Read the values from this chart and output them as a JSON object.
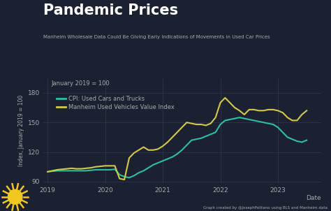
{
  "title": "Pandemic Prices",
  "subtitle": "Manheim Wholesale Data Could Be Giving Early Indications of Movements in Used Car Prices",
  "annotation": "January 2019 = 100",
  "ylabel": "Index, January 2019 = 100",
  "xlabel": "Date",
  "credit": "Graph created by @JosephPolitano using BLS and Manheim data",
  "legend_labels": [
    "CPI: Used Cars and Trucks",
    "Manheim Used Vehicles Value Index"
  ],
  "line_colors": [
    "#2ebfa0",
    "#d4c84a"
  ],
  "bg_color": "#1c2132",
  "plot_bg_color": "#1c2132",
  "text_color": "#aaaaaa",
  "title_color": "#ffffff",
  "grid_color": "#2e3450",
  "ylim": [
    88,
    195
  ],
  "yticks": [
    90,
    120,
    150,
    180
  ],
  "xlim": [
    2018.92,
    2023.75
  ],
  "xticks": [
    2019,
    2020,
    2021,
    2022,
    2023
  ],
  "cpi_dates": [
    2019.0,
    2019.083,
    2019.167,
    2019.25,
    2019.333,
    2019.417,
    2019.5,
    2019.583,
    2019.667,
    2019.75,
    2019.833,
    2019.917,
    2020.0,
    2020.083,
    2020.167,
    2020.25,
    2020.333,
    2020.417,
    2020.5,
    2020.583,
    2020.667,
    2020.75,
    2020.833,
    2020.917,
    2021.0,
    2021.083,
    2021.167,
    2021.25,
    2021.333,
    2021.417,
    2021.5,
    2021.583,
    2021.667,
    2021.75,
    2021.833,
    2021.917,
    2022.0,
    2022.083,
    2022.167,
    2022.25,
    2022.333,
    2022.417,
    2022.5,
    2022.583,
    2022.667,
    2022.75,
    2022.833,
    2022.917,
    2023.0,
    2023.083,
    2023.167,
    2023.25,
    2023.333,
    2023.417,
    2023.5
  ],
  "cpi_values": [
    100,
    100.5,
    101,
    101,
    101,
    101,
    101,
    101,
    101,
    101.5,
    102,
    102,
    102,
    102,
    102.5,
    97,
    95,
    94,
    96,
    99,
    101,
    104,
    107,
    109,
    111,
    113,
    115,
    118,
    122,
    127,
    132,
    133,
    134,
    136,
    138,
    140,
    148,
    152,
    153,
    154,
    155,
    154,
    153,
    152,
    151,
    150,
    149,
    148,
    145,
    140,
    135,
    133,
    131,
    130,
    132
  ],
  "manheim_dates": [
    2019.0,
    2019.083,
    2019.167,
    2019.25,
    2019.333,
    2019.417,
    2019.5,
    2019.583,
    2019.667,
    2019.75,
    2019.833,
    2019.917,
    2020.0,
    2020.083,
    2020.167,
    2020.25,
    2020.333,
    2020.417,
    2020.5,
    2020.583,
    2020.667,
    2020.75,
    2020.833,
    2020.917,
    2021.0,
    2021.083,
    2021.167,
    2021.25,
    2021.333,
    2021.417,
    2021.5,
    2021.583,
    2021.667,
    2021.75,
    2021.833,
    2021.917,
    2022.0,
    2022.083,
    2022.167,
    2022.25,
    2022.333,
    2022.417,
    2022.5,
    2022.583,
    2022.667,
    2022.75,
    2022.833,
    2022.917,
    2023.0,
    2023.083,
    2023.167,
    2023.25,
    2023.333,
    2023.417,
    2023.5
  ],
  "manheim_values": [
    100,
    101,
    102,
    102.5,
    103,
    103.5,
    103,
    103,
    103.5,
    104,
    105,
    105.5,
    106,
    106,
    106,
    93,
    92,
    114,
    119,
    122,
    125,
    122,
    122,
    123,
    126,
    130,
    135,
    140,
    145,
    150,
    149,
    148,
    148,
    147,
    149,
    155,
    170,
    175,
    170,
    165,
    162,
    158,
    163,
    163,
    162,
    162,
    163,
    163,
    162,
    160,
    155,
    152,
    152,
    158,
    162
  ]
}
